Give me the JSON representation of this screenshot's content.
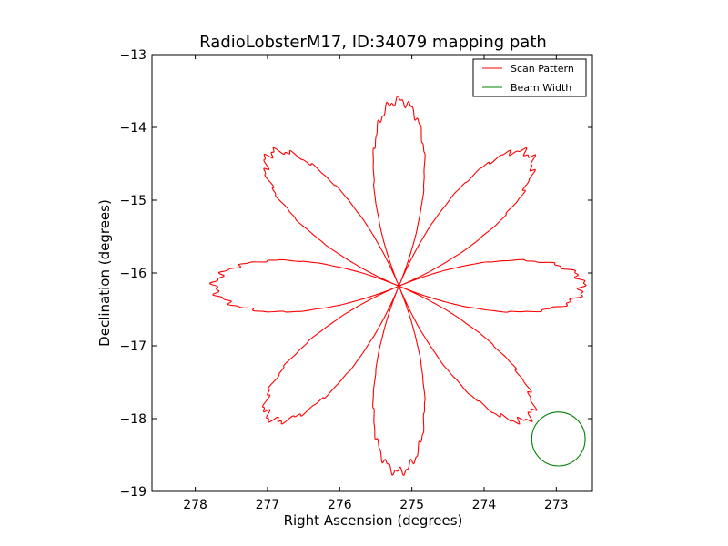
{
  "chart_data": {
    "type": "line",
    "title": "RadioLobsterM17, ID:34079 mapping path",
    "xlabel": "Right Ascension (degrees)",
    "ylabel": "Declination (degrees)",
    "xlim": [
      278.6,
      272.5
    ],
    "ylim": [
      -19,
      -13
    ],
    "x_inverted": true,
    "xticks": [
      278,
      277,
      276,
      275,
      274,
      273
    ],
    "xtick_labels": [
      "278",
      "277",
      "276",
      "275",
      "274",
      "273"
    ],
    "yticks": [
      -13,
      -14,
      -15,
      -16,
      -17,
      -18,
      -19
    ],
    "ytick_labels": [
      "−13",
      "−14",
      "−15",
      "−16",
      "−17",
      "−18",
      "−19"
    ],
    "grid": false,
    "legend_position": "top-right",
    "series": [
      {
        "name": "Scan Pattern",
        "color": "#ff0000",
        "pattern": "rose",
        "center": [
          275.18,
          -16.18
        ],
        "petals": 8,
        "radius_deg": 2.55,
        "petal_angles_deg": [
          0,
          45,
          90,
          135,
          180,
          225,
          270,
          315
        ]
      },
      {
        "name": "Beam Width",
        "color": "#008000",
        "pattern": "circle",
        "center": [
          272.97,
          -18.28
        ],
        "radius_deg": 0.37
      }
    ]
  },
  "colors": {
    "background": "#ffffff",
    "axes_edge": "#000000"
  }
}
